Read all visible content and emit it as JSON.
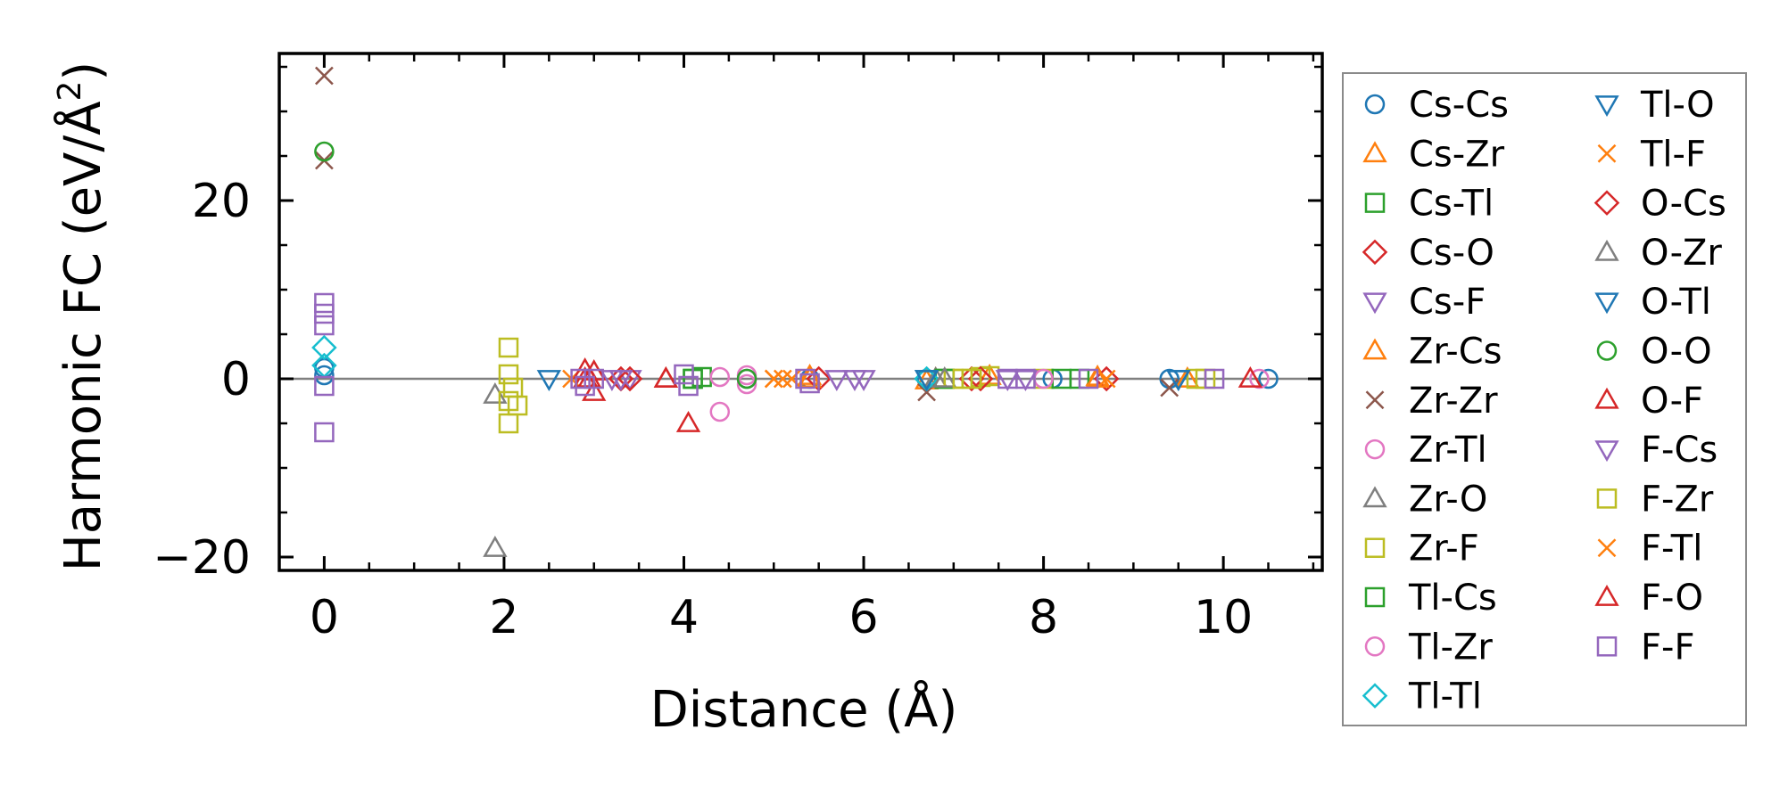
{
  "chart_data": {
    "type": "scatter",
    "title": "",
    "xlabel": "Distance (Å)",
    "ylabel_main": "Harmonic FC (eV/Å",
    "ylabel_sup": "2",
    "ylabel_close": ")",
    "xlim": [
      -0.5,
      11.1
    ],
    "ylim": [
      -21.5,
      36.5
    ],
    "xticks": [
      0,
      2,
      4,
      6,
      8,
      10
    ],
    "xtick_labels": [
      "0",
      "2",
      "4",
      "6",
      "8",
      "10"
    ],
    "yticks": [
      -20,
      0,
      20
    ],
    "ytick_labels": [
      "−20",
      "0",
      "20"
    ],
    "zero_line": 0,
    "legend_position": "right, outside plot, two columns",
    "series": [
      {
        "name": "Cs-Cs",
        "marker": "circle",
        "color": "#1f77b4",
        "points": [
          [
            0,
            1.2
          ],
          [
            0,
            0.4
          ],
          [
            4.7,
            0
          ],
          [
            5.4,
            0
          ],
          [
            6.7,
            0
          ],
          [
            8.1,
            0
          ],
          [
            9.4,
            0
          ],
          [
            10.5,
            0
          ]
        ]
      },
      {
        "name": "Cs-Zr",
        "marker": "triangle-up",
        "color": "#ff7f0e",
        "points": [
          [
            5.4,
            0.3
          ],
          [
            6.7,
            -0.2
          ],
          [
            7.4,
            0.3
          ],
          [
            8.6,
            0.2
          ],
          [
            9.6,
            0
          ]
        ]
      },
      {
        "name": "Cs-Tl",
        "marker": "square",
        "color": "#2ca02c",
        "points": [
          [
            4.1,
            0
          ],
          [
            4.2,
            0.2
          ],
          [
            6.9,
            0
          ],
          [
            8.4,
            0
          ]
        ]
      },
      {
        "name": "Cs-O",
        "marker": "diamond",
        "color": "#d62728",
        "points": [
          [
            3.3,
            0
          ],
          [
            5.5,
            0
          ],
          [
            7.2,
            0
          ],
          [
            8.7,
            0
          ]
        ]
      },
      {
        "name": "Cs-F",
        "marker": "triangle-down",
        "color": "#9467bd",
        "points": [
          [
            3.2,
            0
          ],
          [
            3.4,
            0
          ],
          [
            5.9,
            0
          ],
          [
            6.0,
            0
          ],
          [
            7.6,
            0
          ]
        ]
      },
      {
        "name": "Zr-Cs",
        "marker": "triangle-up",
        "color": "#ff7f0e",
        "points": [
          [
            5.4,
            0
          ],
          [
            6.8,
            0
          ],
          [
            8.6,
            0
          ]
        ]
      },
      {
        "name": "Zr-Zr",
        "marker": "x",
        "color": "#8c564b",
        "points": [
          [
            0,
            34
          ],
          [
            0,
            24.5
          ],
          [
            6.7,
            -1.5
          ],
          [
            9.4,
            -1
          ]
        ]
      },
      {
        "name": "Zr-Tl",
        "marker": "circle",
        "color": "#e377c2",
        "points": [
          [
            4.4,
            -3.7
          ],
          [
            4.4,
            0.2
          ],
          [
            4.7,
            0.4
          ],
          [
            4.7,
            -0.6
          ],
          [
            10.4,
            0
          ]
        ]
      },
      {
        "name": "Zr-O",
        "marker": "triangle-up",
        "color": "#7f7f7f",
        "points": [
          [
            1.9,
            -19
          ],
          [
            1.9,
            -1.8
          ],
          [
            6.8,
            0
          ]
        ]
      },
      {
        "name": "Zr-F",
        "marker": "square",
        "color": "#bcbd22",
        "points": [
          [
            2.05,
            3.5
          ],
          [
            2.05,
            0.5
          ],
          [
            2.1,
            -1
          ],
          [
            2.05,
            -2.5
          ],
          [
            2.15,
            -3
          ],
          [
            2.05,
            -5
          ],
          [
            7.0,
            0
          ],
          [
            7.3,
            0.2
          ],
          [
            7.4,
            0.3
          ],
          [
            8.0,
            0
          ],
          [
            9.7,
            0
          ]
        ]
      },
      {
        "name": "Tl-Cs",
        "marker": "square",
        "color": "#2ca02c",
        "points": [
          [
            4.1,
            0
          ],
          [
            6.9,
            0
          ],
          [
            8.2,
            0
          ]
        ]
      },
      {
        "name": "Tl-Zr",
        "marker": "circle",
        "color": "#e377c2",
        "points": [
          [
            4.7,
            0
          ],
          [
            8.0,
            0
          ]
        ]
      },
      {
        "name": "Tl-Tl",
        "marker": "diamond",
        "color": "#17becf",
        "points": [
          [
            0,
            3.5
          ],
          [
            0,
            1.5
          ],
          [
            6.7,
            0
          ]
        ]
      },
      {
        "name": "Tl-O",
        "marker": "triangle-down",
        "color": "#1f77b4",
        "points": [
          [
            2.5,
            0
          ],
          [
            6.7,
            0
          ],
          [
            9.5,
            0
          ]
        ]
      },
      {
        "name": "Tl-F",
        "marker": "x",
        "color": "#ff7f0e",
        "points": [
          [
            2.75,
            0
          ],
          [
            5.0,
            0
          ],
          [
            5.1,
            0
          ],
          [
            5.2,
            0
          ]
        ]
      },
      {
        "name": "O-Cs",
        "marker": "diamond",
        "color": "#d62728",
        "points": [
          [
            3.4,
            0
          ],
          [
            7.3,
            0
          ]
        ]
      },
      {
        "name": "O-Zr",
        "marker": "triangle-up",
        "color": "#7f7f7f",
        "points": [
          [
            6.9,
            0
          ]
        ]
      },
      {
        "name": "O-Tl",
        "marker": "triangle-down",
        "color": "#1f77b4",
        "points": [
          [
            6.7,
            0
          ],
          [
            9.5,
            0
          ]
        ]
      },
      {
        "name": "O-O",
        "marker": "circle",
        "color": "#2ca02c",
        "points": [
          [
            0,
            25.5
          ],
          [
            4.7,
            0
          ]
        ]
      },
      {
        "name": "O-F",
        "marker": "triangle-up",
        "color": "#d62728",
        "points": [
          [
            2.9,
            1
          ],
          [
            2.95,
            0
          ],
          [
            3.0,
            -1.5
          ],
          [
            3.8,
            0
          ],
          [
            4.05,
            -5
          ],
          [
            10.3,
            0
          ]
        ]
      },
      {
        "name": "F-Cs",
        "marker": "triangle-down",
        "color": "#9467bd",
        "points": [
          [
            3.3,
            0
          ],
          [
            5.7,
            0
          ],
          [
            7.8,
            0
          ]
        ]
      },
      {
        "name": "F-Zr",
        "marker": "square",
        "color": "#bcbd22",
        "points": [
          [
            7.1,
            0
          ],
          [
            7.2,
            0
          ],
          [
            9.8,
            0
          ]
        ]
      },
      {
        "name": "F-Tl",
        "marker": "x",
        "color": "#ff7f0e",
        "points": [
          [
            5.0,
            0
          ],
          [
            8.7,
            0
          ]
        ]
      },
      {
        "name": "F-O",
        "marker": "triangle-up",
        "color": "#d62728",
        "points": [
          [
            2.9,
            0
          ],
          [
            3.0,
            0.8
          ],
          [
            3.8,
            0
          ]
        ]
      },
      {
        "name": "F-F",
        "marker": "square",
        "color": "#9467bd",
        "points": [
          [
            0,
            8.5
          ],
          [
            0,
            7.3
          ],
          [
            0,
            6
          ],
          [
            0,
            -0.8
          ],
          [
            0,
            -6
          ],
          [
            2.85,
            0
          ],
          [
            2.9,
            -0.8
          ],
          [
            3.0,
            0
          ],
          [
            4.0,
            0.5
          ],
          [
            4.05,
            -0.8
          ],
          [
            5.35,
            0
          ],
          [
            5.4,
            -0.5
          ],
          [
            7.6,
            0
          ],
          [
            7.8,
            0
          ],
          [
            8.5,
            0
          ],
          [
            9.9,
            0
          ]
        ]
      }
    ]
  }
}
